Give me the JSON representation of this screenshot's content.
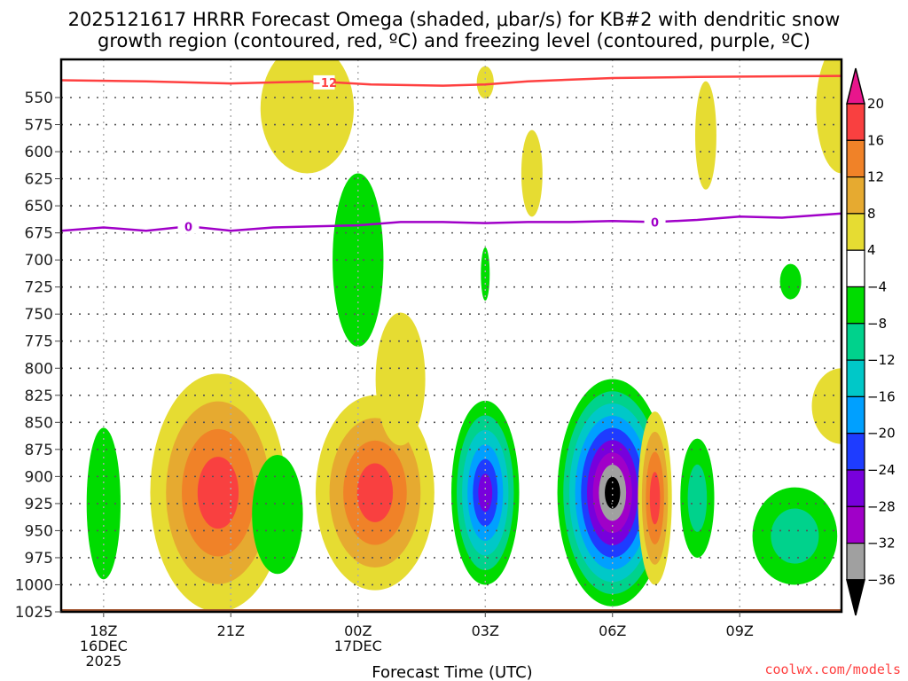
{
  "chart_data": {
    "type": "heatmap",
    "title": "2025121617 HRRR Forecast Omega (shaded, μbar/s) for KB#2 with dendritic snow growth region (contoured, red, ºC) and freezing level (contoured, purple, ºC)",
    "title_lines": [
      "2025121617 HRRR Forecast Omega (shaded, μbar/s) for KB#2 with dendritic snow",
      "growth region (contoured, red, ºC) and freezing level (contoured, purple, ºC)"
    ],
    "xlabel": "Forecast Time (UTC)",
    "ylabel": "",
    "credit": "coolwx.com/models",
    "x_unit": "hours since 16DEC2025 17Z",
    "xlim": [
      0,
      18.4
    ],
    "ylim": [
      1028,
      530
    ],
    "y_scale": "pressure (hPa), inverted",
    "grid": true,
    "x_ticks": [
      {
        "hour": 1,
        "lines": [
          "18Z",
          "16DEC",
          "2025"
        ]
      },
      {
        "hour": 4,
        "lines": [
          "21Z"
        ]
      },
      {
        "hour": 7,
        "lines": [
          "00Z",
          "17DEC"
        ]
      },
      {
        "hour": 10,
        "lines": [
          "03Z"
        ]
      },
      {
        "hour": 13,
        "lines": [
          "06Z"
        ]
      },
      {
        "hour": 16,
        "lines": [
          "09Z"
        ]
      }
    ],
    "y_ticks": [
      550,
      575,
      600,
      625,
      650,
      675,
      700,
      725,
      750,
      775,
      800,
      825,
      850,
      875,
      900,
      925,
      950,
      975,
      1000,
      1025
    ],
    "surface_pressure_hPa": 1025,
    "colorbar": {
      "labels": [
        "20",
        "16",
        "12",
        "8",
        "4",
        "−4",
        "−8",
        "−12",
        "−16",
        "−20",
        "−24",
        "−28",
        "−32",
        "−36"
      ],
      "bins": [
        {
          "range": "> 20",
          "color": "#e8168c",
          "extend": "max"
        },
        {
          "range": "16 to 20",
          "color": "#f94040"
        },
        {
          "range": "12 to 16",
          "color": "#f08228"
        },
        {
          "range": "8 to 12",
          "color": "#e6aa30"
        },
        {
          "range": "4 to 8",
          "color": "#e6dc32"
        },
        {
          "range": "-4 to 4",
          "color": "#ffffff"
        },
        {
          "range": "-8 to -4",
          "color": "#00dc00"
        },
        {
          "range": "-12 to -8",
          "color": "#00d28c"
        },
        {
          "range": "-16 to -12",
          "color": "#00c8c8"
        },
        {
          "range": "-20 to -16",
          "color": "#00a0ff"
        },
        {
          "range": "-24 to -20",
          "color": "#1e3cff"
        },
        {
          "range": "-28 to -24",
          "color": "#7800dc"
        },
        {
          "range": "-32 to -28",
          "color": "#a000c8"
        },
        {
          "range": "-36 to -32",
          "color": "#a0a0a0"
        },
        {
          "range": "< -36",
          "color": "#000000",
          "extend": "min"
        }
      ]
    },
    "omega_features": [
      {
        "name": "upward-motion-18z",
        "t": 1.0,
        "p": 925,
        "dt": 0.4,
        "dp": 70,
        "levels": [
          "-4"
        ]
      },
      {
        "name": "sinking-21z",
        "t": 3.7,
        "p": 915,
        "dt": 1.6,
        "dp": 110,
        "levels": [
          "4",
          "8",
          "12",
          "16"
        ]
      },
      {
        "name": "upward-motion-2230z",
        "t": 5.1,
        "p": 935,
        "dt": 0.6,
        "dp": 55,
        "levels": [
          "-4"
        ]
      },
      {
        "name": "upward-motion-00z-mid",
        "t": 7.0,
        "p": 700,
        "dt": 0.6,
        "dp": 80,
        "levels": [
          "-4"
        ]
      },
      {
        "name": "sinking-00z",
        "t": 7.4,
        "p": 915,
        "dt": 1.4,
        "dp": 90,
        "levels": [
          "4",
          "8",
          "12",
          "16"
        ]
      },
      {
        "name": "upward-motion-03z",
        "t": 10.0,
        "p": 915,
        "dt": 0.8,
        "dp": 85,
        "levels": [
          "-4",
          "-8",
          "-12",
          "-16",
          "-20",
          "-24"
        ]
      },
      {
        "name": "upward-motion-06z",
        "t": 13.0,
        "p": 915,
        "dt": 1.3,
        "dp": 105,
        "levels": [
          "-4",
          "-8",
          "-12",
          "-16",
          "-20",
          "-24",
          "-28",
          "-32",
          "-36"
        ]
      },
      {
        "name": "sinking-07z",
        "t": 14.0,
        "p": 920,
        "dt": 0.4,
        "dp": 80,
        "levels": [
          "4",
          "8",
          "12",
          "16"
        ]
      },
      {
        "name": "upward-motion-08z",
        "t": 15.0,
        "p": 920,
        "dt": 0.4,
        "dp": 55,
        "levels": [
          "-4",
          "-8"
        ]
      },
      {
        "name": "upward-motion-10z",
        "t": 17.3,
        "p": 955,
        "dt": 1.0,
        "dp": 45,
        "levels": [
          "-4",
          "-8"
        ]
      }
    ],
    "contours": [
      {
        "name": "dendritic-growth-minus12C",
        "color": "#ff4040",
        "label": "−12",
        "label_position": {
          "t": 6.2,
          "p": 536
        },
        "points": [
          [
            0,
            534
          ],
          [
            2,
            535
          ],
          [
            4,
            537
          ],
          [
            6,
            535
          ],
          [
            7.3,
            538
          ],
          [
            9,
            539
          ],
          [
            10,
            538
          ],
          [
            11,
            535
          ],
          [
            13,
            532
          ],
          [
            15,
            531
          ],
          [
            18.4,
            530
          ]
        ]
      },
      {
        "name": "freezing-level-0C",
        "color": "#a000c8",
        "label": "0",
        "label_position": {
          "t": 3.0,
          "p": 669
        },
        "second_label_position": {
          "t": 14.0,
          "p": 665
        },
        "points": [
          [
            0,
            673
          ],
          [
            1,
            670
          ],
          [
            2,
            673
          ],
          [
            3,
            669
          ],
          [
            4,
            673
          ],
          [
            5,
            670
          ],
          [
            6,
            669
          ],
          [
            7,
            668
          ],
          [
            8,
            665
          ],
          [
            9,
            665
          ],
          [
            10,
            666
          ],
          [
            11,
            665
          ],
          [
            12,
            665
          ],
          [
            13,
            664
          ],
          [
            14,
            665
          ],
          [
            15,
            663
          ],
          [
            16,
            660
          ],
          [
            17,
            661
          ],
          [
            18.4,
            657
          ]
        ]
      }
    ]
  }
}
